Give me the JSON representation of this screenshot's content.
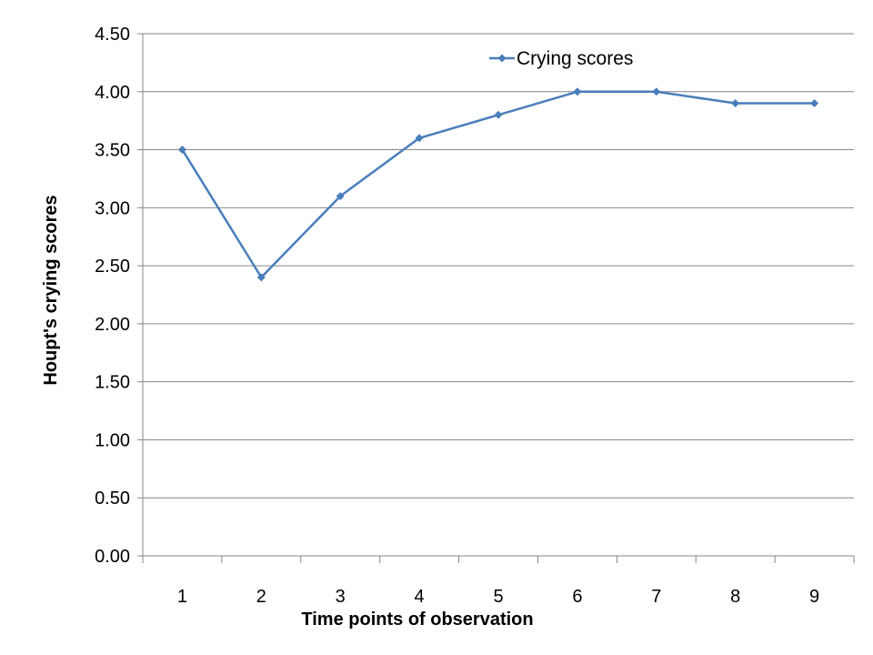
{
  "chart_data": {
    "type": "line",
    "title": "",
    "xlabel": "Time points of observation",
    "ylabel": "Houpt's crying scores",
    "categories": [
      "1",
      "2",
      "3",
      "4",
      "5",
      "6",
      "7",
      "8",
      "9"
    ],
    "series": [
      {
        "name": "Crying scores",
        "values": [
          3.5,
          2.4,
          3.1,
          3.6,
          3.8,
          4.0,
          4.0,
          3.9,
          3.9
        ],
        "color": "#4a7ebb",
        "marker": "diamond"
      }
    ],
    "ylim": [
      0,
      4.5
    ],
    "ytick_step": 0.5,
    "ytick_labels": [
      "0.00",
      "0.50",
      "1.00",
      "1.50",
      "2.00",
      "2.50",
      "3.00",
      "3.50",
      "4.00",
      "4.50"
    ],
    "grid": "horizontal",
    "legend_position": "top-right"
  }
}
